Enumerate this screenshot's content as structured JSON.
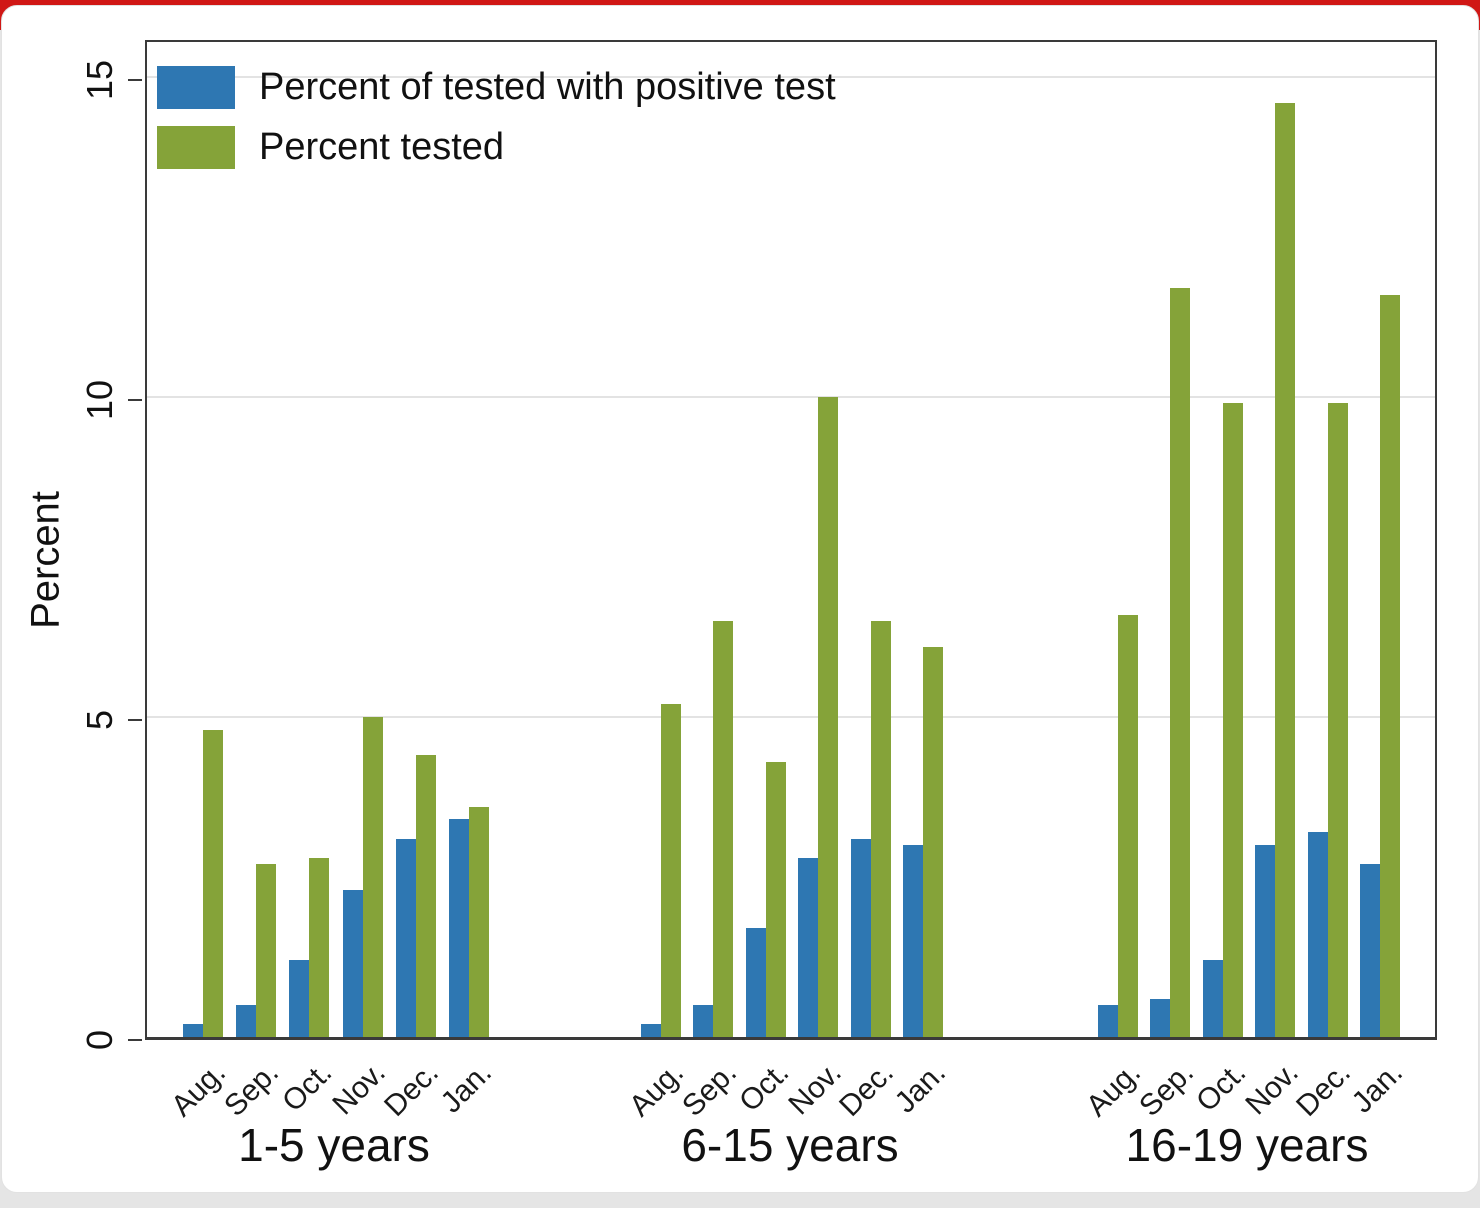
{
  "page": {
    "top_strip_color": "#d01715",
    "bottom_strip_color": "#e5e5e5",
    "card_color": "#ffffff"
  },
  "chart_data": {
    "type": "bar",
    "title": "",
    "ylabel": "Percent",
    "xlabel": "",
    "yticks": [
      0,
      5,
      10,
      15
    ],
    "ylim": [
      0,
      15.6
    ],
    "grid": "horizontal gridlines at 5, 10, 15",
    "legend_position": "top-left inside plot",
    "series": [
      {
        "key": "positive",
        "name": "Percent of tested with positive test",
        "color": "#2e77b2"
      },
      {
        "key": "tested",
        "name": "Percent tested",
        "color": "#85a339"
      }
    ],
    "months": [
      "Aug.",
      "Sep.",
      "Oct.",
      "Nov.",
      "Dec.",
      "Jan."
    ],
    "groups": [
      {
        "label": "1-5 years",
        "values": {
          "positive": [
            0.2,
            0.5,
            1.2,
            2.3,
            3.1,
            3.4
          ],
          "tested": [
            4.8,
            2.7,
            2.8,
            5.0,
            4.4,
            3.6
          ]
        }
      },
      {
        "label": "6-15 years",
        "values": {
          "positive": [
            0.2,
            0.5,
            1.7,
            2.8,
            3.1,
            3.0
          ],
          "tested": [
            5.2,
            6.5,
            4.3,
            10.0,
            6.5,
            6.1
          ]
        }
      },
      {
        "label": "16-19 years",
        "values": {
          "positive": [
            0.5,
            0.6,
            1.2,
            3.0,
            3.2,
            2.7
          ],
          "tested": [
            6.6,
            11.7,
            9.9,
            14.6,
            9.9,
            11.6
          ]
        }
      }
    ]
  }
}
